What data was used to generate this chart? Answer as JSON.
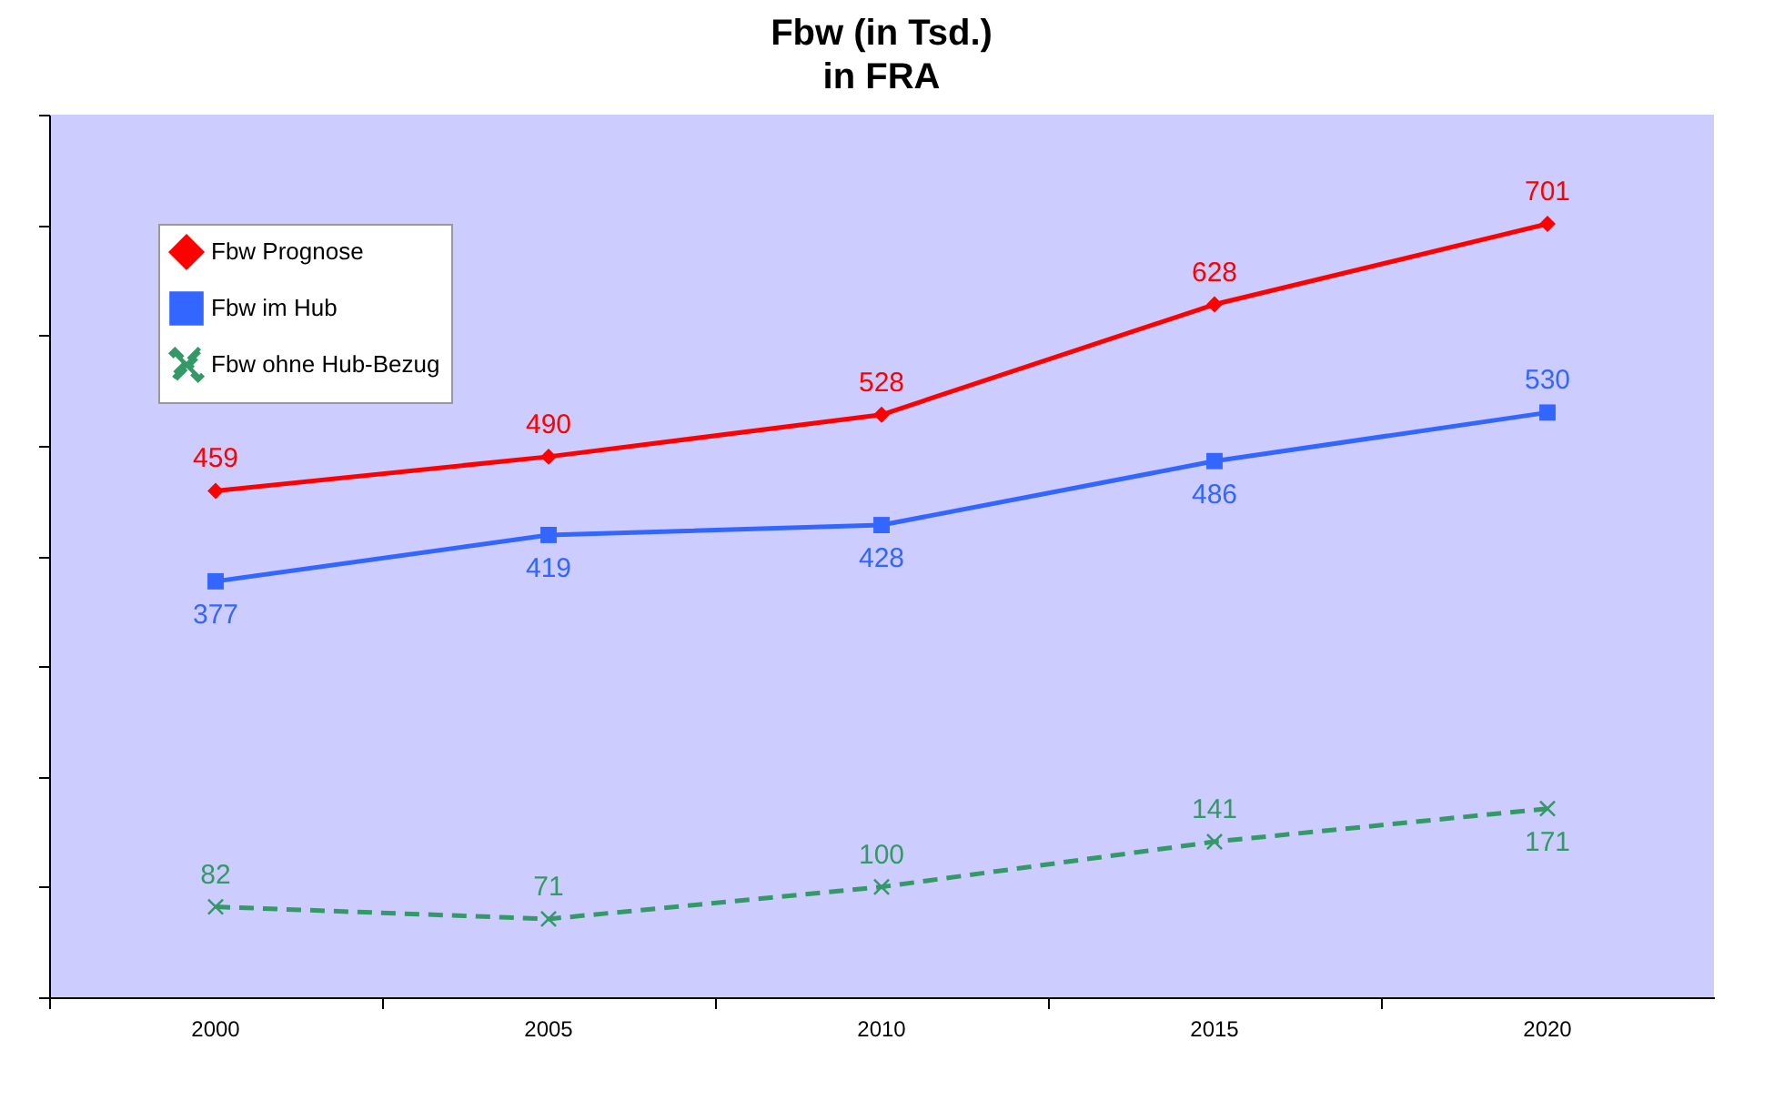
{
  "chart_data": {
    "type": "line",
    "title": "Fbw (in Tsd.)",
    "subtitle": "in FRA",
    "categories": [
      "2000",
      "2005",
      "2010",
      "2015",
      "2020"
    ],
    "series": [
      {
        "name": "Fbw Prognose",
        "color": "#ff0000",
        "values": [
          459,
          490,
          528,
          628,
          701
        ],
        "marker": "diamond",
        "line_style": "solid"
      },
      {
        "name": "Fbw im Hub",
        "color": "#3366ff",
        "values": [
          377,
          419,
          428,
          486,
          530
        ],
        "marker": "square",
        "line_style": "solid"
      },
      {
        "name": "Fbw ohne Hub-Bezug",
        "color": "#339966",
        "values": [
          82,
          71,
          100,
          141,
          171
        ],
        "marker": "cross",
        "line_style": "dashed"
      }
    ],
    "ylim": [
      0,
      800
    ],
    "yticks": [
      {
        "value": 0,
        "label": null
      },
      {
        "value": 100,
        "label": null
      },
      {
        "value": 200,
        "label": null
      },
      {
        "value": 300,
        "label": null
      },
      {
        "value": 400,
        "label": null
      },
      {
        "value": 500,
        "label": null
      },
      {
        "value": 600,
        "label": null
      },
      {
        "value": 700,
        "label": null
      },
      {
        "value": 800,
        "label": null
      }
    ],
    "tick_labels": "x",
    "grid": false,
    "legend": "top left",
    "data_labels": true
  }
}
